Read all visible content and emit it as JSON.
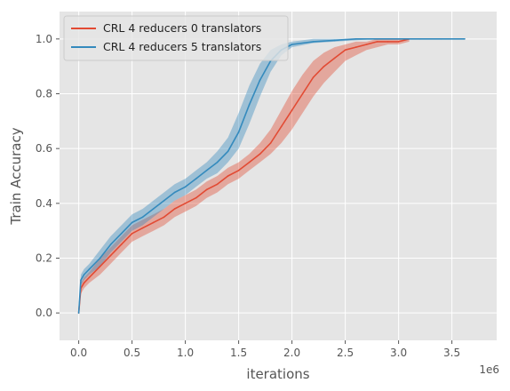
{
  "chart_data": {
    "type": "line",
    "title": "",
    "xlabel": "iterations",
    "ylabel": "Train Accuracy",
    "x_offset_text": "1e6",
    "xlim": [
      -0.18,
      3.92
    ],
    "ylim": [
      -0.1,
      1.1
    ],
    "x_ticks": [
      0.0,
      0.5,
      1.0,
      1.5,
      2.0,
      2.5,
      3.0,
      3.5
    ],
    "x_tick_labels": [
      "0.0",
      "0.5",
      "1.0",
      "1.5",
      "2.0",
      "2.5",
      "3.0",
      "3.5"
    ],
    "y_ticks": [
      0.0,
      0.2,
      0.4,
      0.6,
      0.8,
      1.0
    ],
    "y_tick_labels": [
      "0.0",
      "0.2",
      "0.4",
      "0.6",
      "0.8",
      "1.0"
    ],
    "grid": true,
    "legend_position": "upper-left",
    "series": [
      {
        "name": "CRL 4 reducers 0 translators",
        "color": "#E24A33",
        "x": [
          0.0,
          0.02,
          0.05,
          0.1,
          0.2,
          0.3,
          0.4,
          0.5,
          0.6,
          0.7,
          0.8,
          0.9,
          1.0,
          1.1,
          1.2,
          1.3,
          1.4,
          1.5,
          1.6,
          1.7,
          1.8,
          1.9,
          2.0,
          2.1,
          2.2,
          2.3,
          2.4,
          2.5,
          2.6,
          2.7,
          2.8,
          2.9,
          3.0,
          3.1
        ],
        "y": [
          0.0,
          0.09,
          0.11,
          0.13,
          0.17,
          0.21,
          0.25,
          0.29,
          0.31,
          0.33,
          0.35,
          0.38,
          0.4,
          0.42,
          0.45,
          0.47,
          0.5,
          0.52,
          0.55,
          0.58,
          0.62,
          0.68,
          0.74,
          0.8,
          0.86,
          0.9,
          0.93,
          0.96,
          0.97,
          0.98,
          0.99,
          0.99,
          0.99,
          1.0
        ],
        "lower": [
          0.0,
          0.07,
          0.09,
          0.11,
          0.14,
          0.18,
          0.22,
          0.26,
          0.28,
          0.3,
          0.32,
          0.35,
          0.37,
          0.39,
          0.42,
          0.44,
          0.47,
          0.49,
          0.52,
          0.55,
          0.58,
          0.62,
          0.67,
          0.73,
          0.79,
          0.84,
          0.88,
          0.92,
          0.94,
          0.96,
          0.97,
          0.98,
          0.98,
          0.99
        ],
        "upper": [
          0.0,
          0.11,
          0.13,
          0.15,
          0.2,
          0.24,
          0.28,
          0.32,
          0.34,
          0.36,
          0.38,
          0.41,
          0.43,
          0.45,
          0.48,
          0.5,
          0.53,
          0.55,
          0.58,
          0.62,
          0.67,
          0.74,
          0.81,
          0.87,
          0.92,
          0.95,
          0.97,
          0.98,
          0.99,
          0.99,
          1.0,
          1.0,
          1.0,
          1.0
        ]
      },
      {
        "name": "CRL 4 reducers 5 translators",
        "color": "#348ABD",
        "x": [
          0.0,
          0.02,
          0.05,
          0.1,
          0.2,
          0.3,
          0.4,
          0.5,
          0.6,
          0.7,
          0.8,
          0.9,
          1.0,
          1.1,
          1.2,
          1.3,
          1.4,
          1.5,
          1.6,
          1.7,
          1.8,
          1.9,
          2.0,
          2.2,
          2.4,
          2.6,
          2.8,
          3.0,
          3.2,
          3.4,
          3.62
        ],
        "y": [
          0.0,
          0.12,
          0.14,
          0.16,
          0.2,
          0.25,
          0.29,
          0.33,
          0.35,
          0.38,
          0.41,
          0.44,
          0.46,
          0.49,
          0.52,
          0.55,
          0.59,
          0.66,
          0.76,
          0.85,
          0.92,
          0.96,
          0.98,
          0.99,
          0.995,
          1.0,
          1.0,
          1.0,
          1.0,
          1.0,
          1.0
        ],
        "lower": [
          0.0,
          0.1,
          0.12,
          0.14,
          0.17,
          0.22,
          0.26,
          0.3,
          0.32,
          0.35,
          0.38,
          0.41,
          0.43,
          0.46,
          0.49,
          0.51,
          0.55,
          0.6,
          0.69,
          0.79,
          0.88,
          0.94,
          0.97,
          0.985,
          0.99,
          0.995,
          1.0,
          1.0,
          1.0,
          1.0,
          1.0
        ],
        "upper": [
          0.0,
          0.14,
          0.16,
          0.18,
          0.23,
          0.28,
          0.32,
          0.36,
          0.38,
          0.41,
          0.44,
          0.47,
          0.49,
          0.52,
          0.55,
          0.59,
          0.64,
          0.73,
          0.83,
          0.91,
          0.96,
          0.98,
          0.99,
          1.0,
          1.0,
          1.0,
          1.0,
          1.0,
          1.0,
          1.0,
          1.0
        ]
      }
    ]
  }
}
